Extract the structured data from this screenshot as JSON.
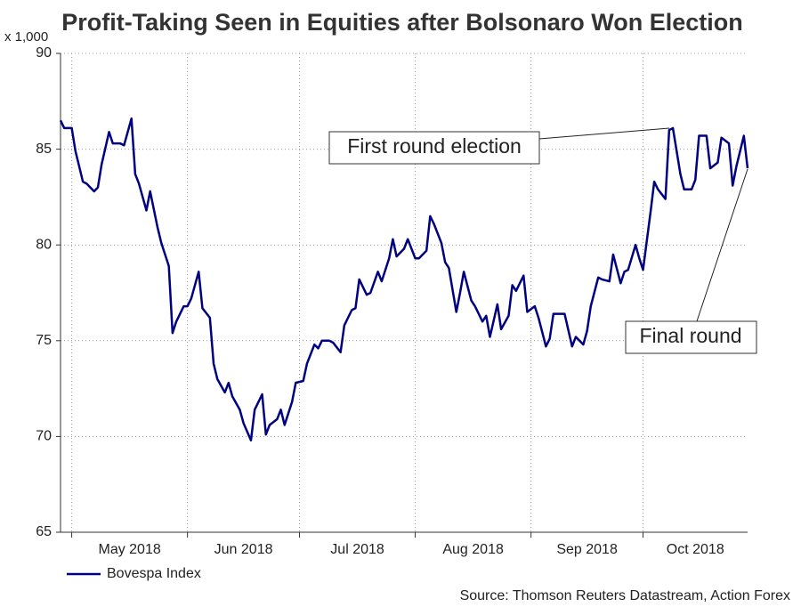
{
  "chart_data": {
    "type": "line",
    "title": "Profit-Taking Seen in Equities after Bolsonaro Won Election",
    "y_unit_label": "x 1,000",
    "source": "Source: Thomson Reuters Datastream, Action Forex",
    "grid": true,
    "xlim": [
      118,
      302
    ],
    "xticks": [
      {
        "value": 121,
        "label": "May 2018"
      },
      {
        "value": 152,
        "label": "Jun 2018"
      },
      {
        "value": 182,
        "label": "Jul 2018"
      },
      {
        "value": 213,
        "label": "Aug 2018"
      },
      {
        "value": 244,
        "label": "Sep 2018"
      },
      {
        "value": 274,
        "label": "Oct 2018"
      }
    ],
    "ylim": [
      65,
      90
    ],
    "yticks": [
      65,
      70,
      75,
      80,
      85,
      90
    ],
    "annotations": [
      "First round election",
      "Final round"
    ],
    "x": [
      118,
      119,
      121,
      122,
      124,
      125,
      127,
      128,
      129,
      131,
      132,
      134,
      135,
      137,
      138,
      139,
      141,
      142,
      144,
      145,
      147,
      148,
      149,
      151,
      152,
      153,
      155,
      156,
      158,
      159,
      160,
      162,
      163,
      164,
      166,
      167,
      169,
      170,
      172,
      173,
      174,
      176,
      177,
      178,
      180,
      181,
      183,
      184,
      186,
      187,
      188,
      190,
      191,
      193,
      194,
      196,
      197,
      198,
      200,
      201,
      203,
      204,
      206,
      207,
      208,
      210,
      211,
      213,
      214,
      216,
      217,
      218,
      220,
      221,
      222,
      224,
      225,
      226,
      228,
      229,
      231,
      232,
      233,
      235,
      236,
      238,
      239,
      240,
      242,
      243,
      245,
      246,
      248,
      249,
      250,
      252,
      253,
      255,
      256,
      258,
      259,
      260,
      262,
      263,
      265,
      266,
      268,
      269,
      270,
      272,
      273,
      274,
      276,
      277,
      278,
      280,
      281,
      282,
      284,
      285,
      287,
      288,
      289,
      291,
      292,
      294,
      295,
      297,
      298,
      299,
      301,
      302
    ],
    "series": [
      {
        "name": "Bovespa Index",
        "color": "#000080",
        "values": [
          86.5,
          86.1,
          86.1,
          84.9,
          83.3,
          83.2,
          82.8,
          83.0,
          84.2,
          85.9,
          85.3,
          85.3,
          85.2,
          86.6,
          83.7,
          83.2,
          81.8,
          82.8,
          80.9,
          80.1,
          78.9,
          75.4,
          76.0,
          76.8,
          76.8,
          77.2,
          78.6,
          76.7,
          76.2,
          73.8,
          73.0,
          72.3,
          72.8,
          72.1,
          71.4,
          70.7,
          69.8,
          71.4,
          72.2,
          70.1,
          70.6,
          70.9,
          71.4,
          70.6,
          71.8,
          72.8,
          72.9,
          73.8,
          74.8,
          74.6,
          75.0,
          75.0,
          74.9,
          74.4,
          75.8,
          76.6,
          76.7,
          78.2,
          77.4,
          77.5,
          78.6,
          78.1,
          79.3,
          80.3,
          79.4,
          79.8,
          80.3,
          79.3,
          79.3,
          79.7,
          81.5,
          81.1,
          80.1,
          79.1,
          78.8,
          76.5,
          77.5,
          78.6,
          77.1,
          76.8,
          76.0,
          76.3,
          75.2,
          76.9,
          75.6,
          76.3,
          77.9,
          77.6,
          78.4,
          76.5,
          76.8,
          76.2,
          74.7,
          75.1,
          76.4,
          76.4,
          76.4,
          74.7,
          75.2,
          74.8,
          75.5,
          76.8,
          78.3,
          78.2,
          78.1,
          79.5,
          78.0,
          78.6,
          78.7,
          80.0,
          79.3,
          78.7,
          81.7,
          83.3,
          82.9,
          82.4,
          86.0,
          86.1,
          83.7,
          82.9,
          82.9,
          83.4,
          85.7,
          85.7,
          84.0,
          84.3,
          85.6,
          85.3,
          83.1,
          84.1,
          85.7,
          84.0
        ]
      }
    ]
  }
}
